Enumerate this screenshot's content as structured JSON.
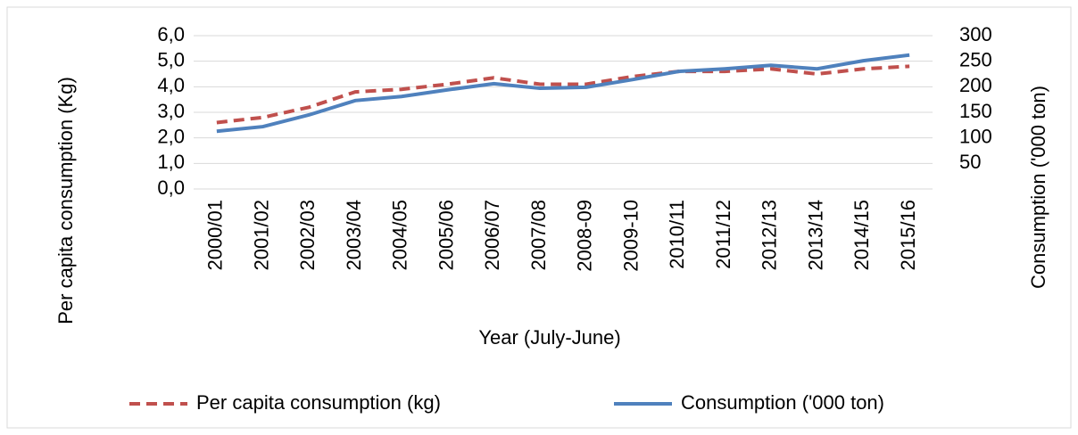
{
  "chart_data": {
    "type": "line",
    "x_label": "Year (July-June)",
    "y_label": "Per capita consumption (Kg)",
    "y2_label": "Consumption ('000 ton)",
    "categories": [
      "2000/01",
      "2001/02",
      "2002/03",
      "2003/04",
      "2004/05",
      "2005/06",
      "2006/07",
      "2007/08",
      "2008-09",
      "2009-10",
      "2010/11",
      "2011/12",
      "2012/13",
      "2013/14",
      "2014/15",
      "2015/16"
    ],
    "series": [
      {
        "name": "Per capita consumption (kg)",
        "color": "#c0504d",
        "dashed": true,
        "values": [
          2.6,
          2.8,
          3.2,
          3.8,
          3.9,
          4.1,
          4.35,
          4.1,
          4.1,
          4.4,
          4.6,
          4.6,
          4.7,
          4.5,
          4.7,
          4.8
        ]
      },
      {
        "name": "Consumption ('000 ton)",
        "color": "#4f81bd",
        "axis": "y2",
        "values": [
          113,
          122,
          145,
          173,
          181,
          194,
          206,
          197,
          199,
          214,
          230,
          235,
          242,
          235,
          251,
          262
        ]
      }
    ],
    "ylim": [
      0,
      6
    ],
    "yticks": [
      {
        "value": 0,
        "label": "0,0"
      },
      {
        "value": 1,
        "label": "1,0"
      },
      {
        "value": 2,
        "label": "2,0"
      },
      {
        "value": 3,
        "label": "3,0"
      },
      {
        "value": 4,
        "label": "4,0"
      },
      {
        "value": 5,
        "label": "5,0"
      },
      {
        "value": 6,
        "label": "6,0"
      }
    ],
    "y2lim": [
      0,
      300
    ],
    "y2ticks": [
      50,
      100,
      150,
      200,
      250,
      300
    ],
    "grid": true,
    "legend": "bottom"
  }
}
